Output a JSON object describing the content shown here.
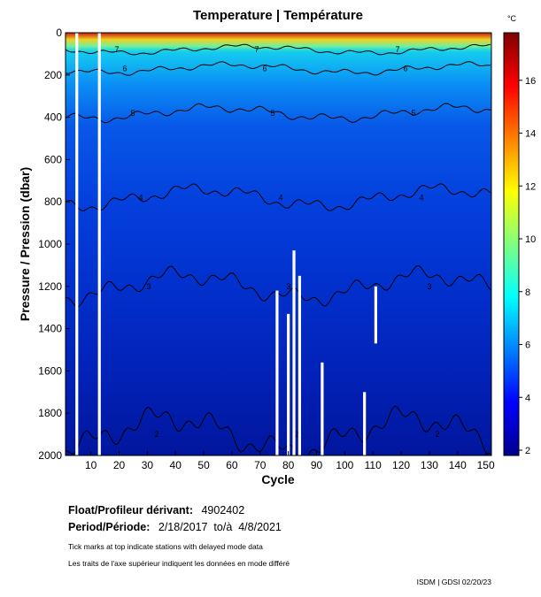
{
  "chart_data": {
    "type": "heatmap",
    "title": "Temperature | Température",
    "xlabel": "Cycle",
    "ylabel": "Pressure / Pression (dbar)",
    "x_ticks": [
      10,
      20,
      30,
      40,
      50,
      60,
      70,
      80,
      90,
      100,
      110,
      120,
      130,
      140,
      150
    ],
    "xlim": [
      1,
      152
    ],
    "y_ticks": [
      0,
      200,
      400,
      600,
      800,
      1000,
      1200,
      1400,
      1600,
      1800,
      2000
    ],
    "ylim": [
      0,
      2000
    ],
    "y_reversed": true,
    "colorbar": {
      "unit": "°C",
      "ticks": [
        2,
        4,
        6,
        8,
        10,
        12,
        14,
        16
      ],
      "range": [
        1.8,
        17.8
      ]
    },
    "colormap": [
      "#00008f",
      "#0000ff",
      "#0080ff",
      "#00ffff",
      "#80ff80",
      "#ffff00",
      "#ff8000",
      "#ff0000",
      "#800000"
    ],
    "contours": [
      {
        "level": 7,
        "depth_dbar": 80
      },
      {
        "level": 6,
        "depth_dbar": 170
      },
      {
        "level": 5,
        "depth_dbar": 380
      },
      {
        "level": 4,
        "depth_dbar": 780
      },
      {
        "level": 3,
        "depth_dbar": 1200
      },
      {
        "level": 2,
        "depth_dbar": 1900
      }
    ],
    "missing_profiles": [
      {
        "cycle": 5,
        "from_dbar": 0,
        "to_dbar": 2000
      },
      {
        "cycle": 13,
        "from_dbar": 0,
        "to_dbar": 2000
      },
      {
        "cycle": 76,
        "from_dbar": 1220,
        "to_dbar": 2000
      },
      {
        "cycle": 80,
        "from_dbar": 1330,
        "to_dbar": 2000
      },
      {
        "cycle": 82,
        "from_dbar": 1030,
        "to_dbar": 2000
      },
      {
        "cycle": 84,
        "from_dbar": 1150,
        "to_dbar": 2000
      },
      {
        "cycle": 92,
        "from_dbar": 1560,
        "to_dbar": 2000
      },
      {
        "cycle": 107,
        "from_dbar": 1700,
        "to_dbar": 2000
      },
      {
        "cycle": 111,
        "from_dbar": 1200,
        "to_dbar": 1470
      }
    ]
  },
  "float": {
    "label": "Float/Profileur dérivant:",
    "value": "4902402"
  },
  "period": {
    "label": "Period/Période:",
    "value": "2/18/2017  to/à  4/8/2021"
  },
  "notes": {
    "en": "Tick marks at top indicate stations with delayed mode data",
    "fr": "Les traits de l'axe supérieur indiquent les données en mode différé"
  },
  "footer": "ISDM | GDSI  02/20/23"
}
